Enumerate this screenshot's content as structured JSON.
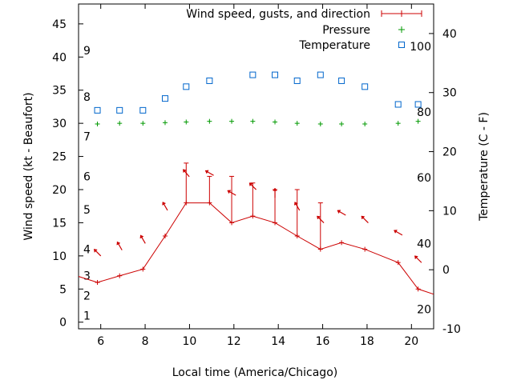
{
  "chart_data": {
    "type": "line",
    "xlabel": "Local time (America/Chicago)",
    "ylabel_left": "Wind speed (kt - Beaufort)",
    "ylabel_right": "Temperature (C - F)",
    "xlim": [
      5,
      21
    ],
    "ylim_left": [
      -1,
      48
    ],
    "ylim_right": [
      -10,
      45
    ],
    "x_ticks": [
      6,
      8,
      10,
      12,
      14,
      16,
      18,
      20
    ],
    "y_left_ticks": [
      0,
      5,
      10,
      15,
      20,
      25,
      30,
      35,
      40,
      45
    ],
    "y_right_ticks": [
      -10,
      0,
      10,
      20,
      30,
      40
    ],
    "beaufort_labels": [
      {
        "label": "1",
        "speed": 1
      },
      {
        "label": "2",
        "speed": 4
      },
      {
        "label": "3",
        "speed": 7
      },
      {
        "label": "4",
        "speed": 11
      },
      {
        "label": "5",
        "speed": 17
      },
      {
        "label": "6",
        "speed": 22
      },
      {
        "label": "7",
        "speed": 28
      },
      {
        "label": "8",
        "speed": 34
      },
      {
        "label": "9",
        "speed": 41
      }
    ],
    "fahrenheit_labels": [
      {
        "label": "20",
        "temp_c": -6.7
      },
      {
        "label": "40",
        "temp_c": 4.4
      },
      {
        "label": "60",
        "temp_c": 15.6
      },
      {
        "label": "80",
        "temp_c": 26.7
      },
      {
        "label": "100",
        "temp_c": 37.8
      }
    ],
    "legend_position": "top-right",
    "series": [
      {
        "name": "Wind speed, gusts, and direction",
        "color": "#cc0000",
        "x": [
          4.9,
          5.85,
          6.85,
          7.9,
          8.9,
          9.85,
          10.9,
          11.9,
          12.85,
          13.85,
          14.85,
          15.9,
          16.85,
          17.9,
          19.4,
          20.3,
          21.2
        ],
        "y": [
          7,
          6,
          7,
          8,
          13,
          18,
          18,
          15,
          16,
          15,
          13,
          11,
          12,
          11,
          9,
          5,
          4
        ],
        "gusts": [
          null,
          null,
          null,
          null,
          null,
          24,
          22,
          22,
          21,
          20,
          20,
          18,
          null,
          null,
          null,
          null,
          null
        ],
        "direction_deg": [
          null,
          315,
          330,
          330,
          330,
          320,
          300,
          300,
          315,
          0,
          330,
          315,
          300,
          315,
          300,
          315,
          null
        ]
      },
      {
        "name": "Pressure",
        "color": "#009900",
        "x": [
          5.85,
          6.85,
          7.9,
          8.9,
          9.85,
          10.9,
          11.9,
          12.85,
          13.85,
          14.85,
          15.9,
          16.85,
          17.9,
          19.4,
          20.3
        ],
        "y": [
          29.9,
          30.0,
          30.0,
          30.1,
          30.2,
          30.3,
          30.3,
          30.3,
          30.2,
          30.0,
          29.9,
          29.9,
          29.9,
          30.0,
          30.3
        ]
      },
      {
        "name": "Temperature",
        "color": "#0066cc",
        "x": [
          5.85,
          6.85,
          7.9,
          8.9,
          9.85,
          10.9,
          11.9,
          12.85,
          13.85,
          14.85,
          15.9,
          16.85,
          17.9,
          19.4,
          20.3
        ],
        "y": [
          27,
          27,
          27,
          29,
          31,
          32,
          null,
          33,
          33,
          32,
          33,
          32,
          31,
          28,
          28
        ]
      }
    ]
  }
}
